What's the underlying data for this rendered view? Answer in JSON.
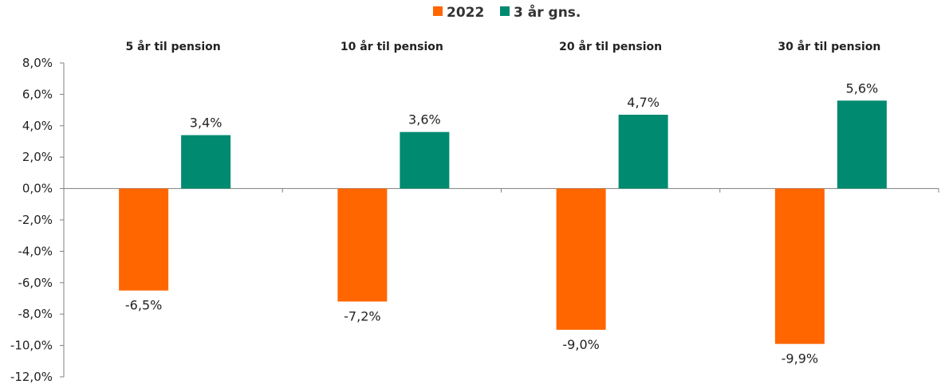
{
  "chart_data": {
    "type": "bar",
    "categories": [
      "5 år til pension",
      "10 år til pension",
      "20 år til pension",
      "30 år til pension"
    ],
    "series": [
      {
        "name": "2022",
        "color": "#FF6600",
        "values": [
          -6.5,
          -7.2,
          -9.0,
          -9.9
        ],
        "labels": [
          "-6,5%",
          "-7,2%",
          "-9,0%",
          "-9,9%"
        ]
      },
      {
        "name": "3 år gns.",
        "color": "#008A70",
        "values": [
          3.4,
          3.6,
          4.7,
          5.6
        ],
        "labels": [
          "3,4%",
          "3,6%",
          "4,7%",
          "5,6%"
        ]
      }
    ],
    "ylim": [
      -12,
      8
    ],
    "yticks": [
      8,
      6,
      4,
      2,
      0,
      -2,
      -4,
      -6,
      -8,
      -10,
      -12
    ],
    "ytick_labels": [
      "8,0%",
      "6,0%",
      "4,0%",
      "2,0%",
      "0,0%",
      "-2,0%",
      "-4,0%",
      "-6,0%",
      "-8,0%",
      "-10,0%",
      "-12,0%"
    ],
    "legend_position": "top-center",
    "grid": false,
    "title": "",
    "xlabel": "",
    "ylabel": ""
  }
}
